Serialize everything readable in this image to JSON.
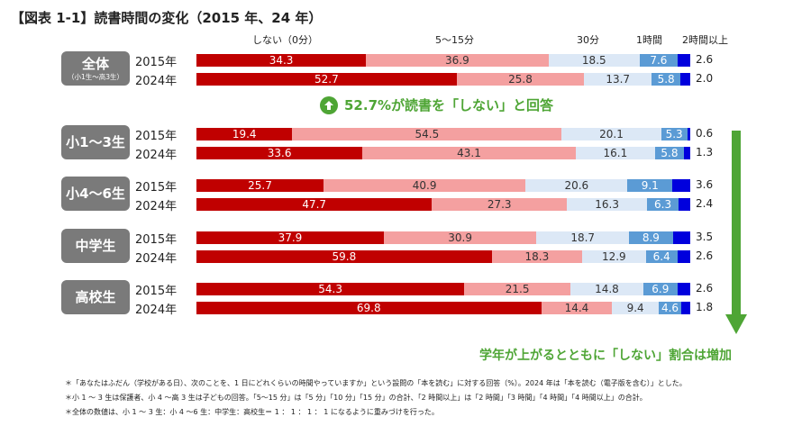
{
  "title": "【図表 1-1】読書時間の変化（2015 年、24 年）",
  "categories": [
    {
      "label": "しない（0分）",
      "color": "#c00000"
    },
    {
      "label": "5～15分",
      "color": "#f4a0a0"
    },
    {
      "label": "30分",
      "color": "#dce8f6"
    },
    {
      "label": "1時間",
      "color": "#5b9bd5"
    },
    {
      "label": "2時間以上",
      "color": "#0000dd"
    }
  ],
  "chart_data": {
    "type": "bar",
    "stacked": true,
    "orientation": "horizontal",
    "unit": "%",
    "series_names": [
      "しない（0分）",
      "5～15分",
      "30分",
      "1時間",
      "2時間以上"
    ],
    "groups": [
      {
        "label": "全体",
        "sublabel": "（小1生～高3生）",
        "rows": [
          {
            "year": "2015年",
            "values": [
              34.3,
              36.9,
              18.5,
              7.6,
              2.6
            ]
          },
          {
            "year": "2024年",
            "values": [
              52.7,
              25.8,
              13.7,
              5.8,
              2.0
            ]
          }
        ]
      },
      {
        "label": "小1～3生",
        "rows": [
          {
            "year": "2015年",
            "values": [
              19.4,
              54.5,
              20.1,
              5.3,
              0.6
            ]
          },
          {
            "year": "2024年",
            "values": [
              33.6,
              43.1,
              16.1,
              5.8,
              1.3
            ]
          }
        ]
      },
      {
        "label": "小4～6生",
        "rows": [
          {
            "year": "2015年",
            "values": [
              25.7,
              40.9,
              20.6,
              9.1,
              3.6
            ]
          },
          {
            "year": "2024年",
            "values": [
              47.7,
              27.3,
              16.3,
              6.3,
              2.4
            ]
          }
        ]
      },
      {
        "label": "中学生",
        "rows": [
          {
            "year": "2015年",
            "values": [
              37.9,
              30.9,
              18.7,
              8.9,
              3.5
            ]
          },
          {
            "year": "2024年",
            "values": [
              59.8,
              18.3,
              12.9,
              6.4,
              2.6
            ]
          }
        ]
      },
      {
        "label": "高校生",
        "rows": [
          {
            "year": "2015年",
            "values": [
              54.3,
              21.5,
              14.8,
              6.9,
              2.6
            ]
          },
          {
            "year": "2024年",
            "values": [
              69.8,
              14.4,
              9.4,
              4.6,
              1.8
            ]
          }
        ]
      }
    ]
  },
  "callout": {
    "text": "52.7%が読書を「しない」と回答",
    "icon": "up-arrow-circle-icon",
    "color": "#4ea535"
  },
  "trend": {
    "text": "学年が上がるとともに「しない」割合は増加",
    "icon": "down-arrow-icon"
  },
  "notes": [
    "＊「あなたはふだん（学校がある日）、次のことを、1 日にどれくらいの時間やっていますか」という設問の「本を読む」に対する回答（%）。2024 年は「本を読む（電子版を含む）」とした。",
    "＊小 1 ～ 3 生は保護者、小 4 ～高 3 生は子どもの回答。「5～15 分」は「5 分」「10 分」「15 分」の合計、「2 時間以上」は「2 時間」「3 時間」「4 時間」「4 時間以上」の合計。",
    "＊全体の数値は、小 1 ～ 3 生：小 4 ～6 生：中学生：高校生＝ 1 ： 1 ： 1 ： 1 になるように重みづけを行った。"
  ]
}
